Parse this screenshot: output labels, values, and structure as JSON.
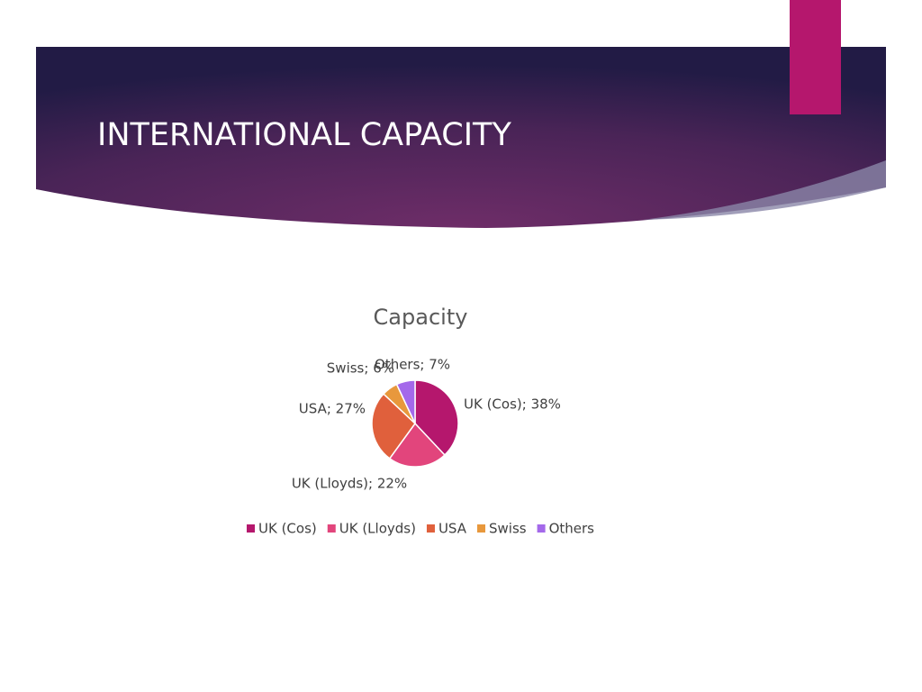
{
  "slide": {
    "title": "INTERNATIONAL CAPACITY"
  },
  "chart_data": {
    "type": "pie",
    "title": "Capacity",
    "categories": [
      "UK (Cos)",
      "UK (Lloyds)",
      "USA",
      "Swiss",
      "Others"
    ],
    "values": [
      38,
      22,
      27,
      6,
      7
    ],
    "value_labels": [
      "UK (Cos); 38%",
      "UK (Lloyds); 22%",
      "USA; 27%",
      "Swiss; 6%",
      "Others; 7%"
    ],
    "colors": [
      "#b5176d",
      "#e2457c",
      "#e0603c",
      "#e8983c",
      "#a469ea"
    ],
    "legend": "bottom"
  }
}
